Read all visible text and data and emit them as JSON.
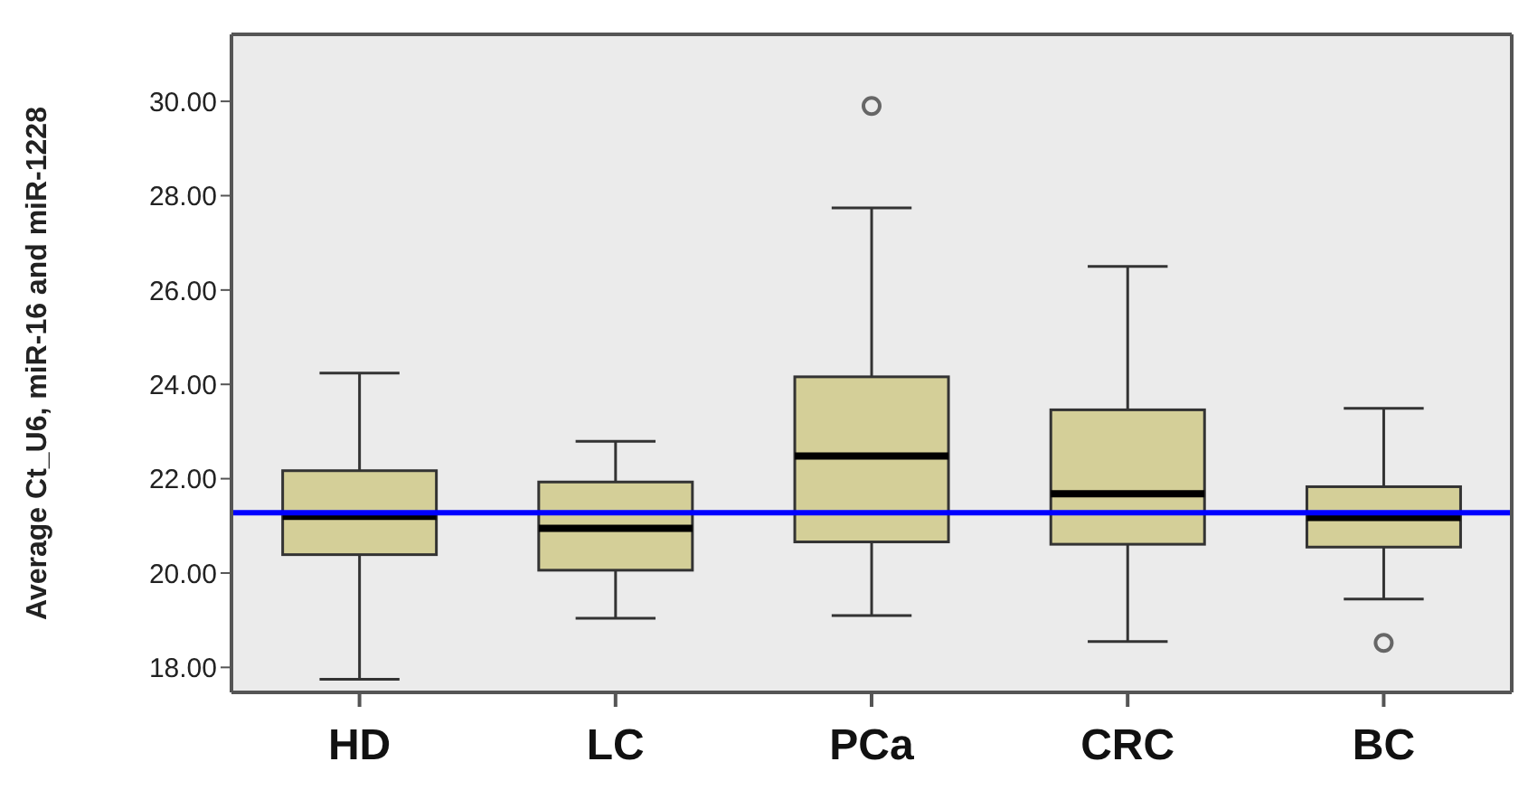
{
  "chart_data": {
    "type": "box",
    "ylabel": "Average Ct_U6, miR-16 and miR-1228",
    "categories": [
      "HD",
      "LC",
      "PCa",
      "CRC",
      "BC"
    ],
    "color": "#d4cf98",
    "boxes": [
      {
        "low": 17.75,
        "q1": 20.39,
        "median": 21.2,
        "q3": 22.17,
        "high": 24.24
      },
      {
        "low": 19.04,
        "q1": 20.06,
        "median": 20.95,
        "q3": 21.93,
        "high": 22.79
      },
      {
        "low": 19.1,
        "q1": 20.66,
        "median": 22.48,
        "q3": 24.16,
        "high": 27.74,
        "outliers": [
          29.9
        ]
      },
      {
        "low": 18.55,
        "q1": 20.61,
        "median": 21.68,
        "q3": 23.46,
        "high": 26.5
      },
      {
        "low": 19.45,
        "q1": 20.55,
        "median": 21.18,
        "q3": 21.83,
        "high": 23.49,
        "outliers": [
          18.52
        ]
      }
    ],
    "ylim": [
      17.47,
      31.42
    ],
    "yticks": [
      {
        "value": 18,
        "label": "18.00"
      },
      {
        "value": 20,
        "label": "20.00"
      },
      {
        "value": 22,
        "label": "22.00"
      },
      {
        "value": 24,
        "label": "24.00"
      },
      {
        "value": 26,
        "label": "26.00"
      },
      {
        "value": 28,
        "label": "28.00"
      },
      {
        "value": 30,
        "label": "30.00"
      }
    ],
    "ref_lines": [
      {
        "axis": "y",
        "value": 21.28,
        "color": "#0000ff"
      }
    ]
  }
}
